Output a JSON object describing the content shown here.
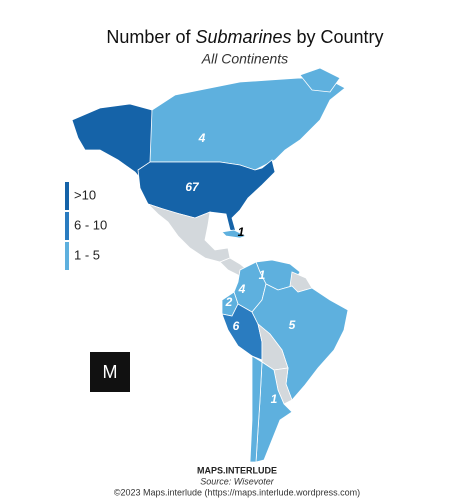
{
  "header": {
    "title_pre": "Number of ",
    "title_em": "Submarines",
    "title_post": " by Country",
    "subtitle": "All Continents"
  },
  "legend": [
    {
      "label": ">10",
      "color": "#1563a8"
    },
    {
      "label": "6 - 10",
      "color": "#2a7cc0"
    },
    {
      "label": "1 - 5",
      "color": "#5eb0de"
    }
  ],
  "no_data_color": "#d3d8dc",
  "map_labels": [
    4,
    67,
    1,
    1,
    4,
    2,
    6,
    5,
    1
  ],
  "logo": "M",
  "footer": {
    "brand": "MAPS.INTERLUDE",
    "source": "Source: Wisevoter",
    "copyright": "©2023 Maps.interlude (https://maps.interlude.wordpress.com)"
  }
}
